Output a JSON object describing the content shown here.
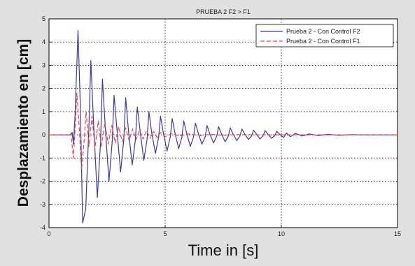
{
  "chart_data": {
    "type": "line",
    "title": "PRUEBA 2  F2 > F1",
    "xlabel": "Time in [s]",
    "ylabel": "Desplazamiento en [cm]",
    "xlim": [
      0,
      15
    ],
    "ylim": [
      -4,
      5
    ],
    "xticks": [
      "0",
      "5",
      "10",
      "15"
    ],
    "yticks": [
      "-4",
      "-3",
      "-2",
      "-1",
      "0",
      "1",
      "2",
      "3",
      "4",
      "5"
    ],
    "grid": true,
    "legend_position": "top-right",
    "series": [
      {
        "name": "Prueba 2 - Con Control F2",
        "color": "#3a3aa0",
        "style": "solid",
        "x": [
          0,
          0.9,
          1.0,
          1.05,
          1.12,
          1.25,
          1.35,
          1.45,
          1.58,
          1.72,
          1.8,
          1.92,
          2.08,
          2.22,
          2.3,
          2.42,
          2.58,
          2.72,
          2.8,
          2.92,
          3.08,
          3.22,
          3.3,
          3.42,
          3.58,
          3.72,
          3.8,
          3.92,
          4.08,
          4.22,
          4.3,
          4.42,
          4.58,
          4.72,
          4.8,
          4.92,
          5.08,
          5.22,
          5.3,
          5.42,
          5.58,
          5.72,
          5.8,
          5.92,
          6.08,
          6.22,
          6.3,
          6.42,
          6.58,
          6.72,
          6.8,
          6.92,
          7.08,
          7.22,
          7.3,
          7.42,
          7.58,
          7.72,
          7.8,
          7.92,
          8.08,
          8.22,
          8.3,
          8.42,
          8.58,
          8.72,
          8.8,
          8.92,
          9.08,
          9.22,
          9.3,
          9.42,
          9.58,
          9.72,
          9.8,
          9.92,
          10.1,
          10.22,
          10.4,
          10.6,
          10.9,
          11.2,
          11.6,
          12.0,
          12.5,
          13.0,
          13.5,
          14.0,
          14.5,
          15.0
        ],
        "y": [
          0,
          0,
          0.1,
          -0.4,
          0.8,
          4.5,
          1.2,
          -3.8,
          -3.2,
          0.4,
          3.2,
          0.5,
          -2.7,
          -0.3,
          2.4,
          0.4,
          -2.0,
          -0.3,
          1.7,
          0.3,
          -1.6,
          -0.2,
          1.6,
          0.2,
          -1.3,
          -0.2,
          1.2,
          0.2,
          -1.1,
          -0.2,
          1.0,
          0.1,
          -0.8,
          -0.1,
          0.8,
          0.1,
          -0.7,
          -0.1,
          0.7,
          0.1,
          -0.6,
          -0.1,
          0.6,
          0.1,
          -0.5,
          -0.1,
          0.5,
          0.1,
          -0.4,
          -0.1,
          0.4,
          0.05,
          -0.35,
          -0.05,
          0.35,
          0.05,
          -0.3,
          -0.05,
          0.3,
          0.05,
          -0.25,
          -0.05,
          0.25,
          0.05,
          -0.2,
          -0.05,
          0.2,
          0.05,
          -0.18,
          -0.03,
          0.18,
          0.03,
          -0.15,
          -0.03,
          0.15,
          0.03,
          -0.12,
          0.08,
          -0.08,
          0.06,
          -0.05,
          0.04,
          -0.03,
          0.02,
          -0.02,
          0.01,
          0,
          0,
          0,
          0
        ]
      },
      {
        "name": "Prueba 2 - Con Control F1",
        "color": "#e04a4a",
        "style": "dashed",
        "x": [
          0,
          0.95,
          1.05,
          1.12,
          1.2,
          1.3,
          1.4,
          1.5,
          1.6,
          1.72,
          1.85,
          1.98,
          2.12,
          2.25,
          2.4,
          2.55,
          2.7,
          2.85,
          3.0,
          3.15,
          3.3,
          3.45,
          3.6,
          3.75,
          3.9,
          4.05,
          4.2,
          4.35,
          4.5,
          4.65,
          4.8,
          5.0,
          5.3,
          5.6,
          6.0,
          6.5,
          7.0,
          7.5,
          8.0,
          9.0,
          10.0,
          11.0,
          12.0,
          13.0,
          14.0,
          15.0
        ],
        "y": [
          0,
          0,
          -1.0,
          0.2,
          1.8,
          0.3,
          -1.5,
          -0.4,
          1.0,
          -0.5,
          0.8,
          -0.6,
          0.6,
          -0.5,
          0.5,
          -0.4,
          0.4,
          -0.35,
          0.35,
          -0.3,
          0.3,
          -0.25,
          0.25,
          -0.2,
          0.2,
          -0.18,
          0.18,
          -0.15,
          0.15,
          -0.12,
          0.1,
          -0.08,
          0.06,
          -0.05,
          0.04,
          -0.03,
          0.02,
          -0.02,
          0.01,
          0,
          0,
          0,
          0,
          0,
          0,
          0
        ]
      }
    ]
  }
}
